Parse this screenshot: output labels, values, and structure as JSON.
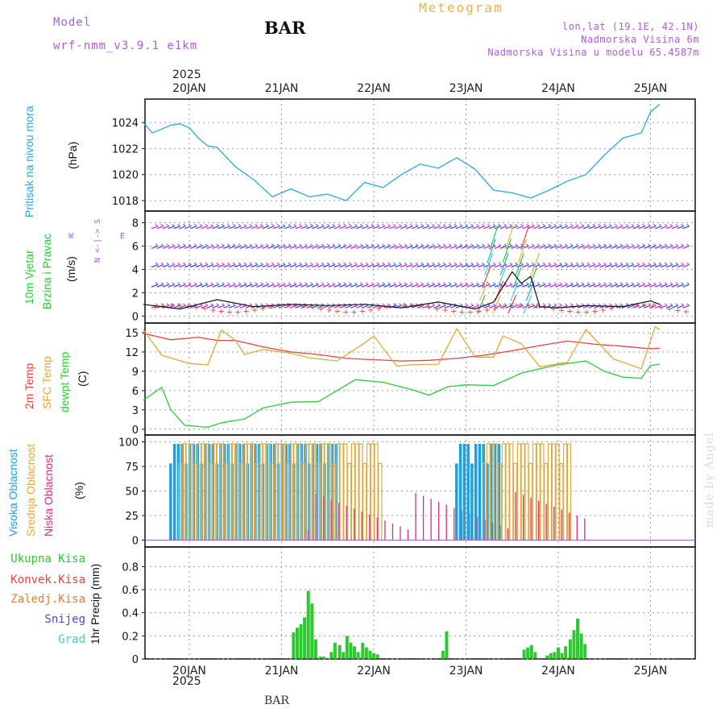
{
  "header": {
    "model_label": "Model",
    "model_name": "wrf-nmm_v3.9.1 e1km",
    "station": "BAR",
    "product": "Meteogram",
    "coords": "lon,lat (19.1E, 42.1N)",
    "elevation": "Nadmorska Visina 6m",
    "model_elevation": "Nadmorska Visina u modelu 65.4587m"
  },
  "footer": {
    "station": "BAR",
    "watermark": "made by Angel"
  },
  "colors": {
    "pressure": "#2aa8e0",
    "temp2m": "#e8423c",
    "sfc": "#e0a93a",
    "dew": "#2ec93a",
    "high_cloud": "#1ea0e0",
    "mid_cloud": "#e0a93a",
    "low_cloud": "#d6307a",
    "precip_total": "#2ec92e",
    "precip_conv": "#e8423c",
    "freezing": "#f07a2a",
    "snow": "#4848e0",
    "hail": "#3ad0d0",
    "purple": "#b05cd6",
    "grid": "#9a9a9a"
  },
  "dates": {
    "year_top": "2025",
    "year_bottom": "2025",
    "labels": [
      "20JAN",
      "21JAN",
      "22JAN",
      "23JAN",
      "24JAN",
      "25JAN"
    ]
  },
  "labels": {
    "pressure_name": "Pritisak na nivou mora",
    "pressure_unit": "(hPa)",
    "wind_name": "10m Vjetar",
    "wind_name2": "Brzina i Pravac",
    "wind_unit": "(m/s)",
    "compass_ns": "N <-|-> S",
    "compass_w": "W",
    "compass_e": "E",
    "temp_2m": "2m Temp",
    "temp_sfc": "SFC Temp",
    "temp_dew": "dewpt Temp",
    "temp_unit": "(C)",
    "cloud_high": "Visoka Oblacnost",
    "cloud_mid": "Srednja Oblacnost",
    "cloud_low": "Niska Oblacnost",
    "cloud_unit": "(%)",
    "precip_total": "Ukupna Kisa",
    "precip_conv": "Konvek.Kisa",
    "precip_freeze": "Zaledj.Kisa",
    "precip_snow": "Snijeg",
    "precip_hail": "Grad",
    "precip_unit": "1hr Precip (mm)"
  },
  "chart_data": [
    {
      "type": "line",
      "name": "pressure",
      "x_days": [
        0.0,
        0.1,
        0.2,
        0.3,
        0.4,
        0.5,
        0.6,
        0.7,
        0.8,
        1.0,
        1.2,
        1.4,
        1.6,
        1.8,
        2.0,
        2.2,
        2.4,
        2.6,
        2.8,
        3.0,
        3.2,
        3.4,
        3.6,
        3.8,
        4.0,
        4.2,
        4.4,
        4.6,
        4.8,
        5.0,
        5.2,
        5.4,
        5.5,
        5.6
      ],
      "y": [
        1024.0,
        1023.2,
        1023.5,
        1023.8,
        1023.9,
        1023.6,
        1022.8,
        1022.2,
        1022.1,
        1020.6,
        1019.6,
        1018.3,
        1018.9,
        1018.3,
        1018.5,
        1018.0,
        1019.4,
        1019.0,
        1020.0,
        1020.8,
        1020.5,
        1021.3,
        1020.4,
        1018.8,
        1018.6,
        1018.2,
        1018.8,
        1019.5,
        1020.0,
        1021.5,
        1022.8,
        1023.2,
        1024.8,
        1025.4
      ],
      "ylim": [
        1017.2,
        1025.8
      ],
      "yticks": [
        1018,
        1020,
        1022,
        1024
      ]
    },
    {
      "type": "line",
      "name": "wind_speed",
      "x_days": [
        0.0,
        0.4,
        0.8,
        1.2,
        1.6,
        2.0,
        2.4,
        2.8,
        3.2,
        3.6,
        3.8,
        3.9,
        4.0,
        4.1,
        4.2,
        4.3,
        4.5,
        4.8,
        5.2,
        5.5,
        5.6
      ],
      "y": [
        1.0,
        0.6,
        1.4,
        0.8,
        1.0,
        0.9,
        1.0,
        0.7,
        1.2,
        0.6,
        1.2,
        2.5,
        3.8,
        2.8,
        3.4,
        0.8,
        0.7,
        0.9,
        0.8,
        1.3,
        1.0
      ],
      "ylim": [
        -0.6,
        9.0
      ],
      "yticks": [
        0,
        2,
        4,
        6,
        8
      ]
    },
    {
      "type": "line",
      "series": [
        {
          "name": "2m Temp",
          "x_days": [
            0.0,
            0.3,
            0.6,
            0.8,
            1.0,
            1.3,
            1.6,
            1.9,
            2.2,
            2.5,
            2.8,
            3.1,
            3.4,
            3.7,
            4.0,
            4.3,
            4.6,
            4.9,
            5.2,
            5.5,
            5.6
          ],
          "y": [
            14.9,
            13.9,
            14.3,
            13.8,
            13.8,
            12.8,
            12.0,
            11.6,
            11.0,
            10.8,
            10.6,
            10.7,
            11.0,
            11.5,
            12.2,
            13.0,
            13.7,
            13.2,
            12.9,
            12.5,
            12.6
          ]
        },
        {
          "name": "SFC Temp",
          "x_days": [
            0.0,
            0.2,
            0.5,
            0.7,
            0.85,
            1.0,
            1.1,
            1.3,
            1.6,
            1.8,
            2.1,
            2.4,
            2.5,
            2.75,
            2.9,
            3.2,
            3.4,
            3.6,
            3.8,
            3.9,
            4.1,
            4.3,
            4.6,
            4.8,
            5.1,
            5.4,
            5.55,
            5.6
          ],
          "y": [
            15.5,
            11.5,
            10.2,
            10.0,
            15.4,
            13.8,
            11.6,
            12.4,
            11.8,
            11.1,
            10.6,
            13.4,
            14.5,
            9.8,
            10.0,
            10.1,
            15.6,
            11.2,
            11.2,
            14.5,
            13.3,
            9.7,
            10.4,
            15.5,
            10.9,
            9.4,
            15.9,
            15.5
          ]
        },
        {
          "name": "dewpt Temp",
          "x_days": [
            0.0,
            0.2,
            0.3,
            0.45,
            0.7,
            0.85,
            1.1,
            1.3,
            1.6,
            1.9,
            2.1,
            2.3,
            2.6,
            2.9,
            3.1,
            3.3,
            3.5,
            3.8,
            4.1,
            4.3,
            4.5,
            4.8,
            5.0,
            5.2,
            5.4,
            5.5,
            5.6
          ],
          "y": [
            4.5,
            6.5,
            3.0,
            0.6,
            0.3,
            1.0,
            1.6,
            3.3,
            4.2,
            4.3,
            6.0,
            7.7,
            7.3,
            6.2,
            5.3,
            6.6,
            6.9,
            6.8,
            8.7,
            9.4,
            10.0,
            10.6,
            9.0,
            8.1,
            7.9,
            9.9,
            10.1
          ]
        }
      ],
      "ylim": [
        -0.9,
        16.5
      ],
      "yticks": [
        0,
        3,
        6,
        9,
        12,
        15
      ]
    },
    {
      "type": "bar",
      "name": "cloud_cover",
      "series": [
        {
          "name": "Visoka Oblacnost",
          "start_day": 0.3,
          "end_day": 2.1,
          "step": 0.0417,
          "value": 98
        },
        {
          "name": "Srednja Oblacnost",
          "start_day": 0.4,
          "end_day": 2.6,
          "step": 0.0417,
          "value": 98
        },
        {
          "name": "Niska Oblacnost",
          "start_day": 1.8,
          "end_day": 4.8,
          "step": 0.0833,
          "value": 40
        },
        {
          "name": "Visoka Oblacnost",
          "start_day": 3.4,
          "end_day": 3.9,
          "step": 0.0417,
          "value": 98
        },
        {
          "name": "Srednja Oblacnost",
          "start_day": 3.7,
          "end_day": 4.65,
          "step": 0.0417,
          "value": 98
        }
      ],
      "ylim": [
        -7,
        107
      ],
      "yticks": [
        0,
        25,
        50,
        75,
        100
      ]
    },
    {
      "type": "bar",
      "name": "precip_total",
      "x_days": [
        1.63,
        1.67,
        1.71,
        1.75,
        1.79,
        1.83,
        1.87,
        1.92,
        1.96,
        2.04,
        2.08,
        2.13,
        2.17,
        2.21,
        2.25,
        2.29,
        2.33,
        2.38,
        2.42,
        2.46,
        2.5,
        2.54,
        3.25,
        3.29,
        4.13,
        4.17,
        4.21,
        4.25,
        4.38,
        4.42,
        4.46,
        4.5,
        4.54,
        4.58,
        4.63,
        4.67,
        4.71,
        4.75,
        4.79
      ],
      "values": [
        0.23,
        0.27,
        0.3,
        0.36,
        0.59,
        0.48,
        0.17,
        0.02,
        0.02,
        0.06,
        0.14,
        0.12,
        0.06,
        0.2,
        0.14,
        0.11,
        0.06,
        0.14,
        0.1,
        0.07,
        0.05,
        0.04,
        0.07,
        0.24,
        0.08,
        0.1,
        0.12,
        0.06,
        0.03,
        0.05,
        0.06,
        0.1,
        0.05,
        0.11,
        0.17,
        0.25,
        0.35,
        0.22,
        0.13
      ],
      "ylim": [
        0,
        0.97
      ],
      "yticks": [
        0,
        0.2,
        0.4,
        0.6,
        0.8
      ]
    }
  ]
}
